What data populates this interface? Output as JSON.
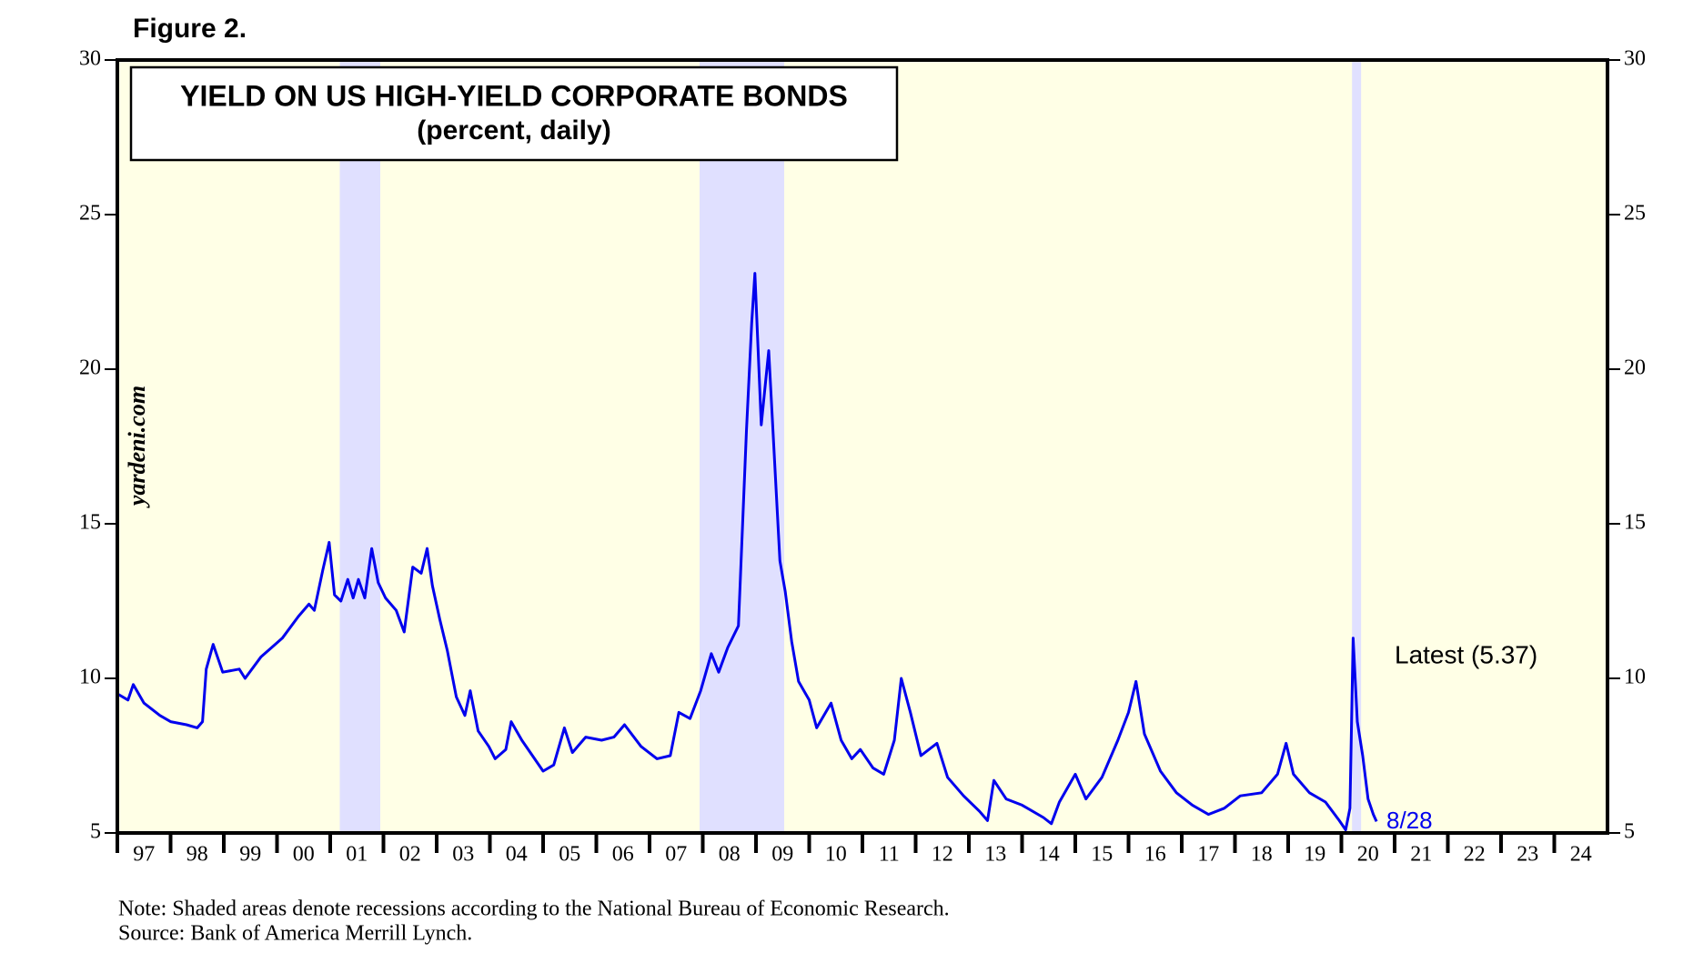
{
  "chart_data": {
    "type": "line",
    "figure_label": "Figure 2.",
    "title": "YIELD ON US HIGH-YIELD CORPORATE BONDS",
    "subtitle": "(percent, daily)",
    "watermark": "yardeni.com",
    "annotation": "Latest (5.37)",
    "date_label": "8/28",
    "note": "Note: Shaded areas denote recessions according to the National Bureau of Economic Research.",
    "source": "Source: Bank of America Merrill Lynch.",
    "background": "#ffffe6",
    "recession_color": "#e0e0ff",
    "recessions": [
      [
        2001.18,
        2001.94
      ],
      [
        2007.94,
        2009.53
      ],
      [
        2020.2,
        2020.37
      ]
    ],
    "xlim": [
      1997,
      2025
    ],
    "xticks": [
      {
        "value": 1997,
        "label": "97"
      },
      {
        "value": 1998,
        "label": "98"
      },
      {
        "value": 1999,
        "label": "99"
      },
      {
        "value": 2000,
        "label": "00"
      },
      {
        "value": 2001,
        "label": "01"
      },
      {
        "value": 2002,
        "label": "02"
      },
      {
        "value": 2003,
        "label": "03"
      },
      {
        "value": 2004,
        "label": "04"
      },
      {
        "value": 2005,
        "label": "05"
      },
      {
        "value": 2006,
        "label": "06"
      },
      {
        "value": 2007,
        "label": "07"
      },
      {
        "value": 2008,
        "label": "08"
      },
      {
        "value": 2009,
        "label": "09"
      },
      {
        "value": 2010,
        "label": "10"
      },
      {
        "value": 2011,
        "label": "11"
      },
      {
        "value": 2012,
        "label": "12"
      },
      {
        "value": 2013,
        "label": "13"
      },
      {
        "value": 2014,
        "label": "14"
      },
      {
        "value": 2015,
        "label": "15"
      },
      {
        "value": 2016,
        "label": "16"
      },
      {
        "value": 2017,
        "label": "17"
      },
      {
        "value": 2018,
        "label": "18"
      },
      {
        "value": 2019,
        "label": "19"
      },
      {
        "value": 2020,
        "label": "20"
      },
      {
        "value": 2021,
        "label": "21"
      },
      {
        "value": 2022,
        "label": "22"
      },
      {
        "value": 2023,
        "label": "23"
      },
      {
        "value": 2024,
        "label": "24"
      }
    ],
    "ylim": [
      5,
      30
    ],
    "yticks": [
      5,
      10,
      15,
      20,
      25,
      30
    ],
    "x": [
      1997.0,
      1997.2,
      1997.3,
      1997.5,
      1997.8,
      1998.0,
      1998.3,
      1998.5,
      1998.6,
      1998.67,
      1998.8,
      1998.98,
      1999.29,
      1999.4,
      1999.7,
      1999.9,
      2000.1,
      2000.4,
      2000.6,
      2000.7,
      2000.86,
      2000.98,
      2001.08,
      2001.2,
      2001.33,
      2001.43,
      2001.53,
      2001.65,
      2001.78,
      2001.9,
      2002.04,
      2002.24,
      2002.39,
      2002.55,
      2002.71,
      2002.82,
      2002.92,
      2003.06,
      2003.2,
      2003.37,
      2003.53,
      2003.63,
      2003.78,
      2003.98,
      2004.1,
      2004.3,
      2004.4,
      2004.6,
      2004.8,
      2005.0,
      2005.2,
      2005.4,
      2005.55,
      2005.8,
      2006.1,
      2006.33,
      2006.53,
      2006.84,
      2007.14,
      2007.39,
      2007.55,
      2007.76,
      2007.96,
      2008.16,
      2008.3,
      2008.47,
      2008.67,
      2008.82,
      2008.92,
      2008.98,
      2009.1,
      2009.24,
      2009.35,
      2009.45,
      2009.55,
      2009.67,
      2009.8,
      2010.0,
      2010.14,
      2010.41,
      2010.6,
      2010.8,
      2010.96,
      2011.2,
      2011.4,
      2011.6,
      2011.73,
      2011.9,
      2012.1,
      2012.4,
      2012.6,
      2012.9,
      2013.2,
      2013.35,
      2013.47,
      2013.7,
      2014.0,
      2014.4,
      2014.55,
      2014.7,
      2015.0,
      2015.2,
      2015.5,
      2015.8,
      2016.0,
      2016.14,
      2016.3,
      2016.6,
      2016.9,
      2017.2,
      2017.5,
      2017.8,
      2018.1,
      2018.5,
      2018.8,
      2018.96,
      2019.1,
      2019.4,
      2019.7,
      2019.96,
      2020.08,
      2020.16,
      2020.22,
      2020.3,
      2020.4,
      2020.5,
      2020.6,
      2020.66
    ],
    "series": [
      {
        "name": "High-yield corporate bond yield",
        "color": "#0000ee",
        "values": [
          9.5,
          9.3,
          9.8,
          9.2,
          8.8,
          8.6,
          8.5,
          8.4,
          8.6,
          10.3,
          11.1,
          10.2,
          10.3,
          10.0,
          10.7,
          11.0,
          11.3,
          12.0,
          12.4,
          12.2,
          13.5,
          14.4,
          12.7,
          12.5,
          13.2,
          12.6,
          13.2,
          12.6,
          14.2,
          13.1,
          12.6,
          12.2,
          11.5,
          13.6,
          13.4,
          14.2,
          13.0,
          11.9,
          10.9,
          9.4,
          8.8,
          9.6,
          8.3,
          7.8,
          7.4,
          7.7,
          8.6,
          8.0,
          7.5,
          7.0,
          7.2,
          8.4,
          7.6,
          8.1,
          8.0,
          8.1,
          8.5,
          7.8,
          7.4,
          7.5,
          8.9,
          8.7,
          9.6,
          10.8,
          10.2,
          11.0,
          11.7,
          18.0,
          21.5,
          23.1,
          18.2,
          20.6,
          17.0,
          13.8,
          12.8,
          11.2,
          9.9,
          9.3,
          8.4,
          9.2,
          8.0,
          7.4,
          7.7,
          7.1,
          6.9,
          8.0,
          10.0,
          8.9,
          7.5,
          7.9,
          6.8,
          6.2,
          5.7,
          5.4,
          6.7,
          6.1,
          5.9,
          5.5,
          5.3,
          6.0,
          6.9,
          6.1,
          6.8,
          8.0,
          8.9,
          9.9,
          8.2,
          7.0,
          6.3,
          5.9,
          5.6,
          5.8,
          6.2,
          6.3,
          6.9,
          7.9,
          6.9,
          6.3,
          6.0,
          5.4,
          5.1,
          5.8,
          11.3,
          8.6,
          7.5,
          6.1,
          5.6,
          5.37
        ]
      }
    ]
  }
}
